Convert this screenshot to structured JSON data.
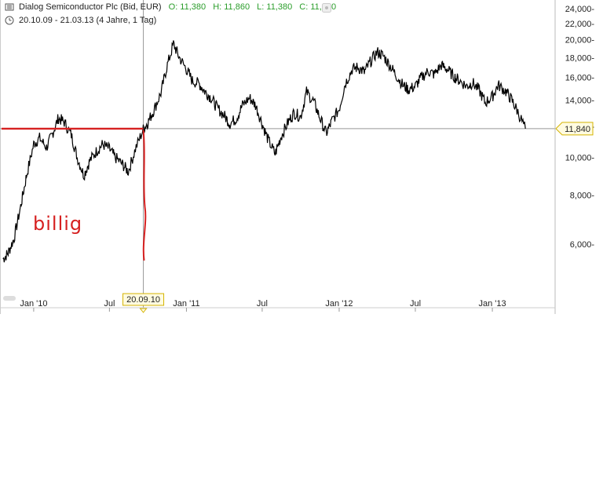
{
  "header": {
    "instrument": "Dialog Semiconductor Plc (Bid, EUR)",
    "open": "O: 11,380",
    "high": "H: 11,860",
    "low": "L: 11,380",
    "close": "C: 11,840",
    "date_range": "20.10.09 - 21.03.13 (4 Jahre, 1 Tag)"
  },
  "chart_data": {
    "type": "line",
    "x_tick_labels": [
      "Jan '10",
      "Jul",
      "Jan '11",
      "Jul",
      "Jan '12",
      "Jul",
      "Jan '13"
    ],
    "x_ticks": [
      "2010-01-01",
      "2010-07-01",
      "2011-01-01",
      "2011-07-01",
      "2012-01-01",
      "2012-07-01",
      "2013-01-01"
    ],
    "y_scale": "log",
    "y_ticks": [
      6000,
      8000,
      10000,
      12000,
      14000,
      16000,
      18000,
      20000,
      22000,
      24000
    ],
    "y_tick_labels": [
      "6,000-",
      "8,000-",
      "10,000-",
      "12,000-",
      "14,000-",
      "16,000-",
      "18,000-",
      "20,000-",
      "22,000-",
      "24,000-"
    ],
    "current_price_label": "11,840",
    "current_price": 11840,
    "crosshair_date": "2010-09-20",
    "crosshair_date_label": "20.09.10",
    "horizontal_level": 11840,
    "annotation": "billig",
    "annotation_color": "#d62020",
    "line_color": "#000000",
    "series": [
      {
        "x": [
          "2009-10-20",
          "2009-11-01",
          "2009-11-15",
          "2009-12-01",
          "2009-12-15",
          "2010-01-01",
          "2010-01-15",
          "2010-02-01",
          "2010-02-15",
          "2010-03-01",
          "2010-03-15",
          "2010-04-01",
          "2010-04-15",
          "2010-05-01",
          "2010-05-15",
          "2010-06-01",
          "2010-06-15",
          "2010-07-01",
          "2010-07-15",
          "2010-08-01",
          "2010-08-15",
          "2010-09-01",
          "2010-09-20",
          "2010-10-01",
          "2010-10-15",
          "2010-11-01",
          "2010-11-15",
          "2010-12-01",
          "2010-12-15",
          "2011-01-01",
          "2011-01-15",
          "2011-02-01",
          "2011-02-15",
          "2011-03-01",
          "2011-03-15",
          "2011-04-01",
          "2011-04-15",
          "2011-05-01",
          "2011-05-15",
          "2011-06-01",
          "2011-06-15",
          "2011-07-01",
          "2011-07-15",
          "2011-08-01",
          "2011-08-15",
          "2011-09-01",
          "2011-09-15",
          "2011-10-01",
          "2011-10-15",
          "2011-11-01",
          "2011-11-15",
          "2011-12-01",
          "2011-12-15",
          "2012-01-01",
          "2012-01-15",
          "2012-02-01",
          "2012-02-15",
          "2012-03-01",
          "2012-03-15",
          "2012-04-01",
          "2012-04-15",
          "2012-05-01",
          "2012-05-15",
          "2012-06-01",
          "2012-06-15",
          "2012-07-01",
          "2012-07-15",
          "2012-08-01",
          "2012-08-15",
          "2012-09-01",
          "2012-09-15",
          "2012-10-01",
          "2012-10-15",
          "2012-11-01",
          "2012-11-15",
          "2012-12-01",
          "2012-12-15",
          "2013-01-01",
          "2013-01-15",
          "2013-02-01",
          "2013-02-15",
          "2013-03-01",
          "2013-03-21"
        ],
        "y": [
          5500,
          5700,
          6200,
          7500,
          9000,
          10800,
          11200,
          10600,
          11500,
          12600,
          12300,
          11400,
          10000,
          9000,
          9800,
          10400,
          10800,
          10500,
          10000,
          9600,
          9200,
          10500,
          11800,
          12300,
          13200,
          14600,
          17000,
          19500,
          18000,
          16800,
          15700,
          15400,
          14700,
          14200,
          13400,
          12800,
          12200,
          12600,
          13600,
          14200,
          13600,
          12200,
          11100,
          10200,
          11300,
          12300,
          13000,
          12700,
          14700,
          13900,
          12700,
          11500,
          12400,
          13300,
          15400,
          16800,
          17000,
          16500,
          17500,
          18600,
          18200,
          17200,
          16300,
          15300,
          14900,
          15200,
          16000,
          16600,
          16300,
          17200,
          16800,
          16100,
          15700,
          15200,
          15500,
          14800,
          13800,
          14300,
          15300,
          14800,
          14100,
          13200,
          11840
        ]
      }
    ]
  }
}
